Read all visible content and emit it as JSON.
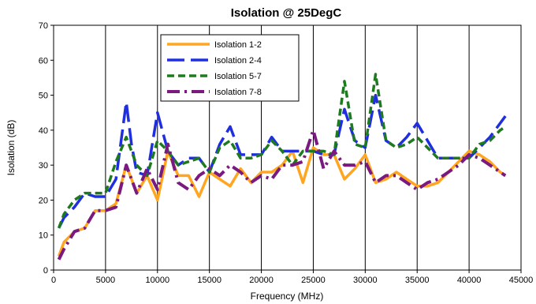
{
  "chart_data": {
    "type": "line",
    "title": "Isolation @ 25DegC",
    "xlabel": "Frequency (MHz)",
    "ylabel": "Isolation (dB)",
    "xlim": [
      0,
      45000
    ],
    "ylim": [
      0,
      70
    ],
    "xticks": [
      0,
      5000,
      10000,
      15000,
      20000,
      25000,
      30000,
      35000,
      40000,
      45000
    ],
    "yticks": [
      0,
      10,
      20,
      30,
      40,
      50,
      60,
      70
    ],
    "grid": "vertical",
    "legend_position": "top-left",
    "series": [
      {
        "name": "Isolation 1-2",
        "color": "#FFA520",
        "style": "solid",
        "x": [
          500,
          1000,
          2000,
          3000,
          4000,
          5000,
          6000,
          7000,
          8000,
          9000,
          10000,
          11000,
          12000,
          13000,
          14000,
          15000,
          16000,
          17000,
          18000,
          19000,
          20000,
          21000,
          22000,
          23000,
          24000,
          25000,
          26000,
          27000,
          28000,
          29000,
          30000,
          31000,
          32000,
          33000,
          34000,
          35000,
          36000,
          37000,
          38000,
          39000,
          40000,
          41000,
          42000,
          43000,
          43500
        ],
        "values": [
          4,
          8,
          11,
          12,
          17,
          17,
          19,
          30,
          22,
          27,
          20,
          34,
          27,
          27,
          21,
          28,
          26,
          24,
          29,
          25,
          28,
          28,
          30,
          34,
          25,
          35,
          33,
          33,
          26,
          29,
          33,
          25,
          26,
          28,
          26,
          24,
          24,
          25,
          28,
          31,
          34,
          33,
          31,
          28,
          27
        ]
      },
      {
        "name": "Isolation 2-4",
        "color": "#1F2FE0",
        "style": "long-dash",
        "x": [
          500,
          1000,
          2000,
          3000,
          4000,
          5000,
          6000,
          7000,
          7500,
          8000,
          9000,
          10000,
          11000,
          12000,
          13000,
          14000,
          15000,
          16000,
          17000,
          18000,
          19000,
          20000,
          21000,
          22000,
          23000,
          24000,
          25000,
          26000,
          27000,
          28000,
          29000,
          30000,
          31000,
          32000,
          33000,
          34000,
          35000,
          36000,
          37000,
          38000,
          39000,
          40000,
          41000,
          42000,
          43000,
          43500
        ],
        "values": [
          12,
          15,
          18,
          22,
          21,
          21,
          26,
          48,
          36,
          28,
          27,
          45,
          34,
          30,
          32,
          32,
          28,
          36,
          41,
          33,
          33,
          33,
          38,
          34,
          34,
          34,
          34,
          33,
          33,
          46,
          37,
          35,
          50,
          37,
          35,
          38,
          42,
          37,
          32,
          32,
          32,
          32,
          35,
          38,
          42,
          44
        ]
      },
      {
        "name": "Isolation 5-7",
        "color": "#1E7A1E",
        "style": "short-dash",
        "x": [
          500,
          1000,
          2000,
          3000,
          4000,
          5000,
          6000,
          7000,
          7500,
          8000,
          9000,
          10000,
          11000,
          12000,
          13000,
          14000,
          15000,
          16000,
          17000,
          18000,
          19000,
          20000,
          21000,
          22000,
          23000,
          24000,
          25000,
          26000,
          27000,
          28000,
          29000,
          30000,
          31000,
          32000,
          33000,
          34000,
          35000,
          36000,
          37000,
          38000,
          39000,
          40000,
          41000,
          42000,
          43000,
          43500
        ],
        "values": [
          12,
          16,
          20,
          22,
          22,
          22,
          31,
          38,
          34,
          30,
          27,
          37,
          34,
          30,
          31,
          32,
          28,
          35,
          37,
          32,
          32,
          33,
          37,
          34,
          30,
          34,
          34,
          34,
          33,
          54,
          36,
          35,
          56,
          37,
          35,
          36,
          38,
          35,
          32,
          32,
          32,
          32,
          36,
          37,
          40,
          41
        ]
      },
      {
        "name": "Isolation 7-8",
        "color": "#7A1A80",
        "style": "dash-dot",
        "x": [
          500,
          1000,
          2000,
          3000,
          4000,
          5000,
          6000,
          7000,
          8000,
          9000,
          10000,
          11000,
          12000,
          13000,
          14000,
          15000,
          16000,
          17000,
          18000,
          19000,
          20000,
          21000,
          22000,
          23000,
          24000,
          25000,
          26000,
          27000,
          28000,
          29000,
          30000,
          31000,
          32000,
          33000,
          34000,
          35000,
          36000,
          37000,
          38000,
          39000,
          40000,
          41000,
          42000,
          43000,
          43500
        ],
        "values": [
          3,
          6,
          11,
          12,
          17,
          17,
          18,
          30,
          22,
          29,
          23,
          36,
          25,
          23,
          27,
          29,
          27,
          30,
          28,
          25,
          27,
          26,
          30,
          30,
          31,
          40,
          29,
          34,
          30,
          30,
          31,
          25,
          27,
          27,
          25,
          23,
          25,
          26,
          28,
          30,
          33,
          32,
          30,
          28,
          27
        ]
      }
    ]
  }
}
